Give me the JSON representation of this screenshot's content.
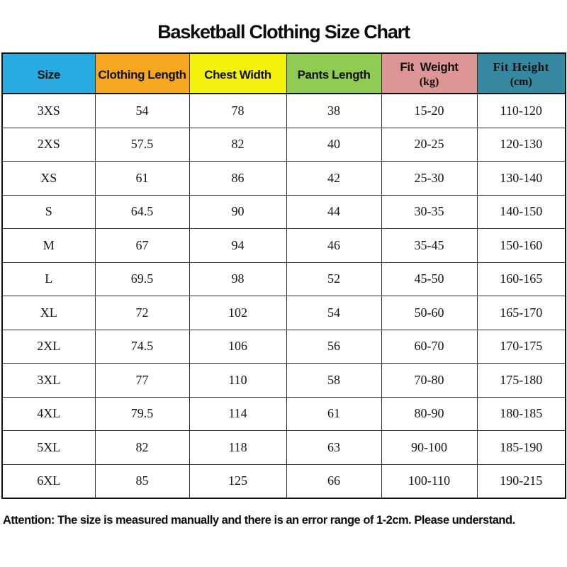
{
  "title": "Basketball Clothing Size Chart",
  "note": "Attention: The size is measured manually and there is an error range of 1-2cm. Please understand.",
  "colors": {
    "size_header": "#29ABE2",
    "clothing_length_header": "#F5A81F",
    "chest_width_header": "#F2F20E",
    "pants_length_header": "#90CB53",
    "fit_weight_header": "#DE9595",
    "fit_height_header": "#35889F",
    "grid_line": "#2e2e2e",
    "text": "#111111"
  },
  "table": {
    "columns": [
      {
        "label": "Size",
        "sub": "",
        "color": "#29ABE2"
      },
      {
        "label": "Clothing Length",
        "sub": "",
        "color": "#F5A81F"
      },
      {
        "label": "Chest Width",
        "sub": "",
        "color": "#F2F20E"
      },
      {
        "label": "Pants Length",
        "sub": "",
        "color": "#90CB53"
      },
      {
        "label": "Fit  Weight",
        "sub": "(kg)",
        "color": "#DE9595"
      },
      {
        "label": "Fit Height",
        "sub": "(cm)",
        "color": "#35889F"
      }
    ],
    "rows": [
      [
        "3XS",
        "54",
        "78",
        "38",
        "15-20",
        "110-120"
      ],
      [
        "2XS",
        "57.5",
        "82",
        "40",
        "20-25",
        "120-130"
      ],
      [
        "XS",
        "61",
        "86",
        "42",
        "25-30",
        "130-140"
      ],
      [
        "S",
        "64.5",
        "90",
        "44",
        "30-35",
        "140-150"
      ],
      [
        "M",
        "67",
        "94",
        "46",
        "35-45",
        "150-160"
      ],
      [
        "L",
        "69.5",
        "98",
        "52",
        "45-50",
        "160-165"
      ],
      [
        "XL",
        "72",
        "102",
        "54",
        "50-60",
        "165-170"
      ],
      [
        "2XL",
        "74.5",
        "106",
        "56",
        "60-70",
        "170-175"
      ],
      [
        "3XL",
        "77",
        "110",
        "58",
        "70-80",
        "175-180"
      ],
      [
        "4XL",
        "79.5",
        "114",
        "61",
        "80-90",
        "180-185"
      ],
      [
        "5XL",
        "82",
        "118",
        "63",
        "90-100",
        "185-190"
      ],
      [
        "6XL",
        "85",
        "125",
        "66",
        "100-110",
        "190-215"
      ]
    ]
  },
  "chart_data": {
    "type": "table",
    "title": "Basketball Clothing Size Chart",
    "columns": [
      "Size",
      "Clothing Length",
      "Chest Width",
      "Pants Length",
      "Fit Weight (kg)",
      "Fit Height (cm)"
    ],
    "rows": [
      [
        "3XS",
        54,
        78,
        38,
        "15-20",
        "110-120"
      ],
      [
        "2XS",
        57.5,
        82,
        40,
        "20-25",
        "120-130"
      ],
      [
        "XS",
        61,
        86,
        42,
        "25-30",
        "130-140"
      ],
      [
        "S",
        64.5,
        90,
        44,
        "30-35",
        "140-150"
      ],
      [
        "M",
        67,
        94,
        46,
        "35-45",
        "150-160"
      ],
      [
        "L",
        69.5,
        98,
        52,
        "45-50",
        "160-165"
      ],
      [
        "XL",
        72,
        102,
        54,
        "50-60",
        "165-170"
      ],
      [
        "2XL",
        74.5,
        106,
        56,
        "60-70",
        "170-175"
      ],
      [
        "3XL",
        77,
        110,
        58,
        "70-80",
        "175-180"
      ],
      [
        "4XL",
        79.5,
        114,
        61,
        "80-90",
        "180-185"
      ],
      [
        "5XL",
        82,
        118,
        63,
        "90-100",
        "185-190"
      ],
      [
        "6XL",
        85,
        125,
        66,
        "100-110",
        "190-215"
      ]
    ],
    "footnote": "Attention: The size is measured manually and there is an error range of 1-2cm. Please understand."
  }
}
